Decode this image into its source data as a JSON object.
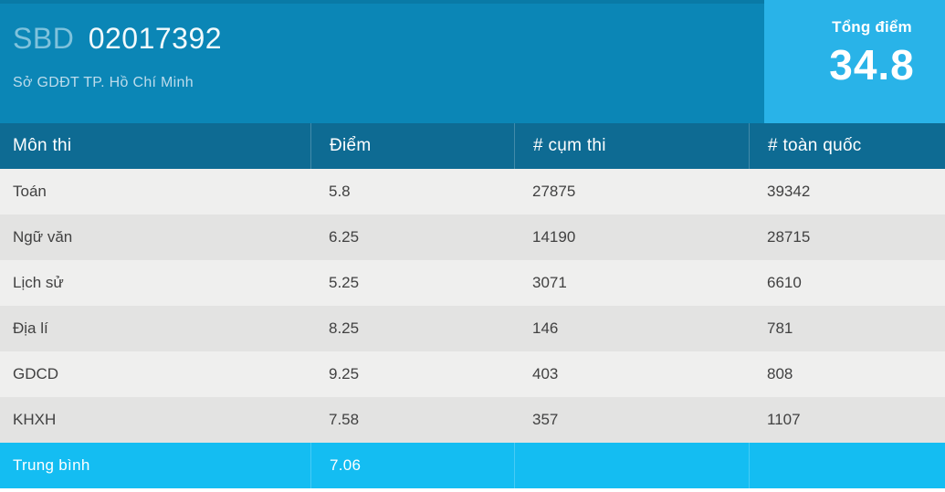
{
  "header": {
    "sbd_label": "SBD",
    "sbd_number": "02017392",
    "subtitle": "Sở GDĐT TP. Hồ Chí Minh",
    "total": {
      "label": "Tổng điểm",
      "value": "34.8"
    }
  },
  "table": {
    "columns": [
      "Môn thi",
      "Điểm",
      "# cụm thi",
      "# toàn quốc"
    ],
    "rows": [
      {
        "subject": "Toán",
        "score": "5.8",
        "cluster_rank": "27875",
        "national_rank": "39342"
      },
      {
        "subject": "Ngữ văn",
        "score": "6.25",
        "cluster_rank": "14190",
        "national_rank": "28715"
      },
      {
        "subject": "Lịch sử",
        "score": "5.25",
        "cluster_rank": "3071",
        "national_rank": "6610"
      },
      {
        "subject": "Địa lí",
        "score": "8.25",
        "cluster_rank": "146",
        "national_rank": "781"
      },
      {
        "subject": "GDCD",
        "score": "9.25",
        "cluster_rank": "403",
        "national_rank": "808"
      },
      {
        "subject": "KHXH",
        "score": "7.58",
        "cluster_rank": "357",
        "national_rank": "1107"
      }
    ],
    "summary": {
      "subject": "Trung bình",
      "score": "7.06",
      "cluster_rank": "",
      "national_rank": ""
    }
  },
  "colors": {
    "header_bg": "#0b86b6",
    "table_header_bg": "#0e6b93",
    "accent_bright": "#29b3e8",
    "summary_row_bg": "#14bdf2",
    "row_light": "#efefee",
    "row_dark": "#e3e3e2",
    "body_text": "#414141"
  }
}
